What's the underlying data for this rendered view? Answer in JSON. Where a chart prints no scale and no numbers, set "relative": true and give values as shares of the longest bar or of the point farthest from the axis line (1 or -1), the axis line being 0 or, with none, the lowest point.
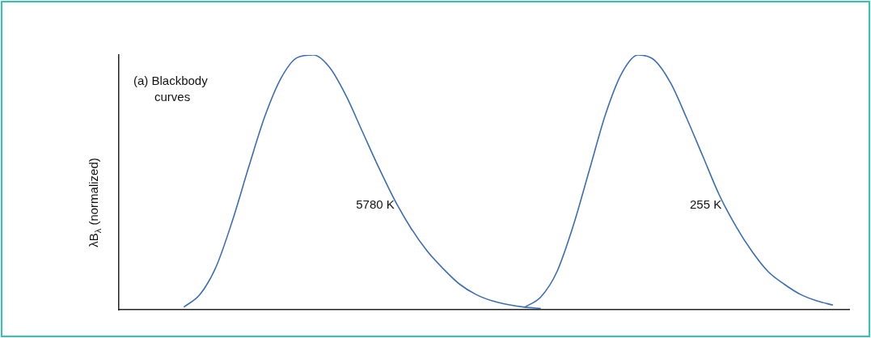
{
  "chart_data": {
    "type": "line",
    "relative": true,
    "title": "(a) Blackbody curves",
    "ylabel": "λB$_{λ}$ (normalized)",
    "categories": [
      null,
      null,
      null,
      null,
      null,
      null,
      null,
      null,
      null,
      null,
      null,
      null,
      null,
      null,
      null,
      null,
      null,
      null,
      null,
      null,
      null,
      null,
      null,
      null,
      null,
      null,
      null,
      null,
      null,
      null,
      null,
      null,
      null,
      null,
      null,
      null,
      null,
      null,
      null,
      null,
      null,
      null,
      null,
      null,
      null,
      null
    ],
    "series": [
      {
        "name": "5780 K",
        "color": "#3b6db3",
        "values": [
          null,
          null,
          null,
          null,
          0.01,
          0.06,
          0.17,
          0.35,
          0.56,
          0.76,
          0.91,
          0.99,
          1.0,
          0.95,
          0.84,
          0.7,
          0.56,
          0.43,
          0.32,
          0.23,
          0.16,
          0.1,
          0.06,
          0.035,
          0.02,
          0.01,
          0.005,
          null,
          null,
          null,
          null,
          null,
          null,
          null,
          null,
          null,
          null,
          null,
          null,
          null,
          null,
          null,
          null,
          null,
          null,
          null
        ]
      },
      {
        "name": "255 K",
        "color": "#3b6db3",
        "values": [
          null,
          null,
          null,
          null,
          null,
          null,
          null,
          null,
          null,
          null,
          null,
          null,
          null,
          null,
          null,
          null,
          null,
          null,
          null,
          null,
          null,
          null,
          null,
          null,
          null,
          0.01,
          0.05,
          0.15,
          0.33,
          0.55,
          0.77,
          0.93,
          1.0,
          0.98,
          0.89,
          0.75,
          0.6,
          0.45,
          0.33,
          0.23,
          0.15,
          0.1,
          0.06,
          0.035,
          0.018,
          null
        ]
      }
    ]
  }
}
